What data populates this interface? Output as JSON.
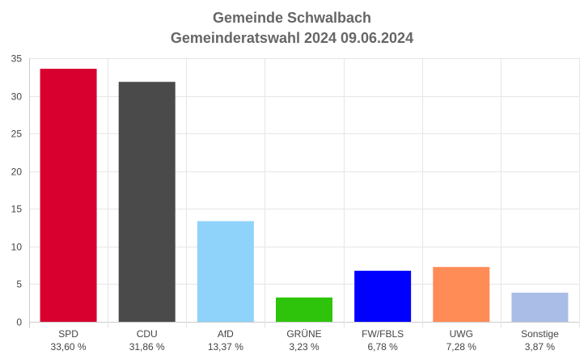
{
  "chart_data": {
    "type": "bar",
    "title": "Gemeinde Schwalbach",
    "subtitle": "Gemeinderatswahl 2024 09.06.2024",
    "xlabel": "",
    "ylabel": "",
    "ylim": [
      0,
      35
    ],
    "yticks": [
      0,
      5,
      10,
      15,
      20,
      25,
      30,
      35
    ],
    "grid": true,
    "legend": "none",
    "categories": [
      "SPD",
      "CDU",
      "AfD",
      "GRÜNE",
      "FW/FBLS",
      "UWG",
      "Sonstige"
    ],
    "values": [
      33.6,
      31.86,
      13.37,
      3.23,
      6.78,
      7.28,
      3.87
    ],
    "value_labels": [
      "33,60 %",
      "31,86 %",
      "13,37 %",
      "3,23 %",
      "6,78 %",
      "7,28 %",
      "3,87 %"
    ],
    "colors": [
      "#d7002f",
      "#4a4a4a",
      "#8fd3fb",
      "#2fc40c",
      "#0000ff",
      "#ff8c57",
      "#a9bde6"
    ]
  }
}
